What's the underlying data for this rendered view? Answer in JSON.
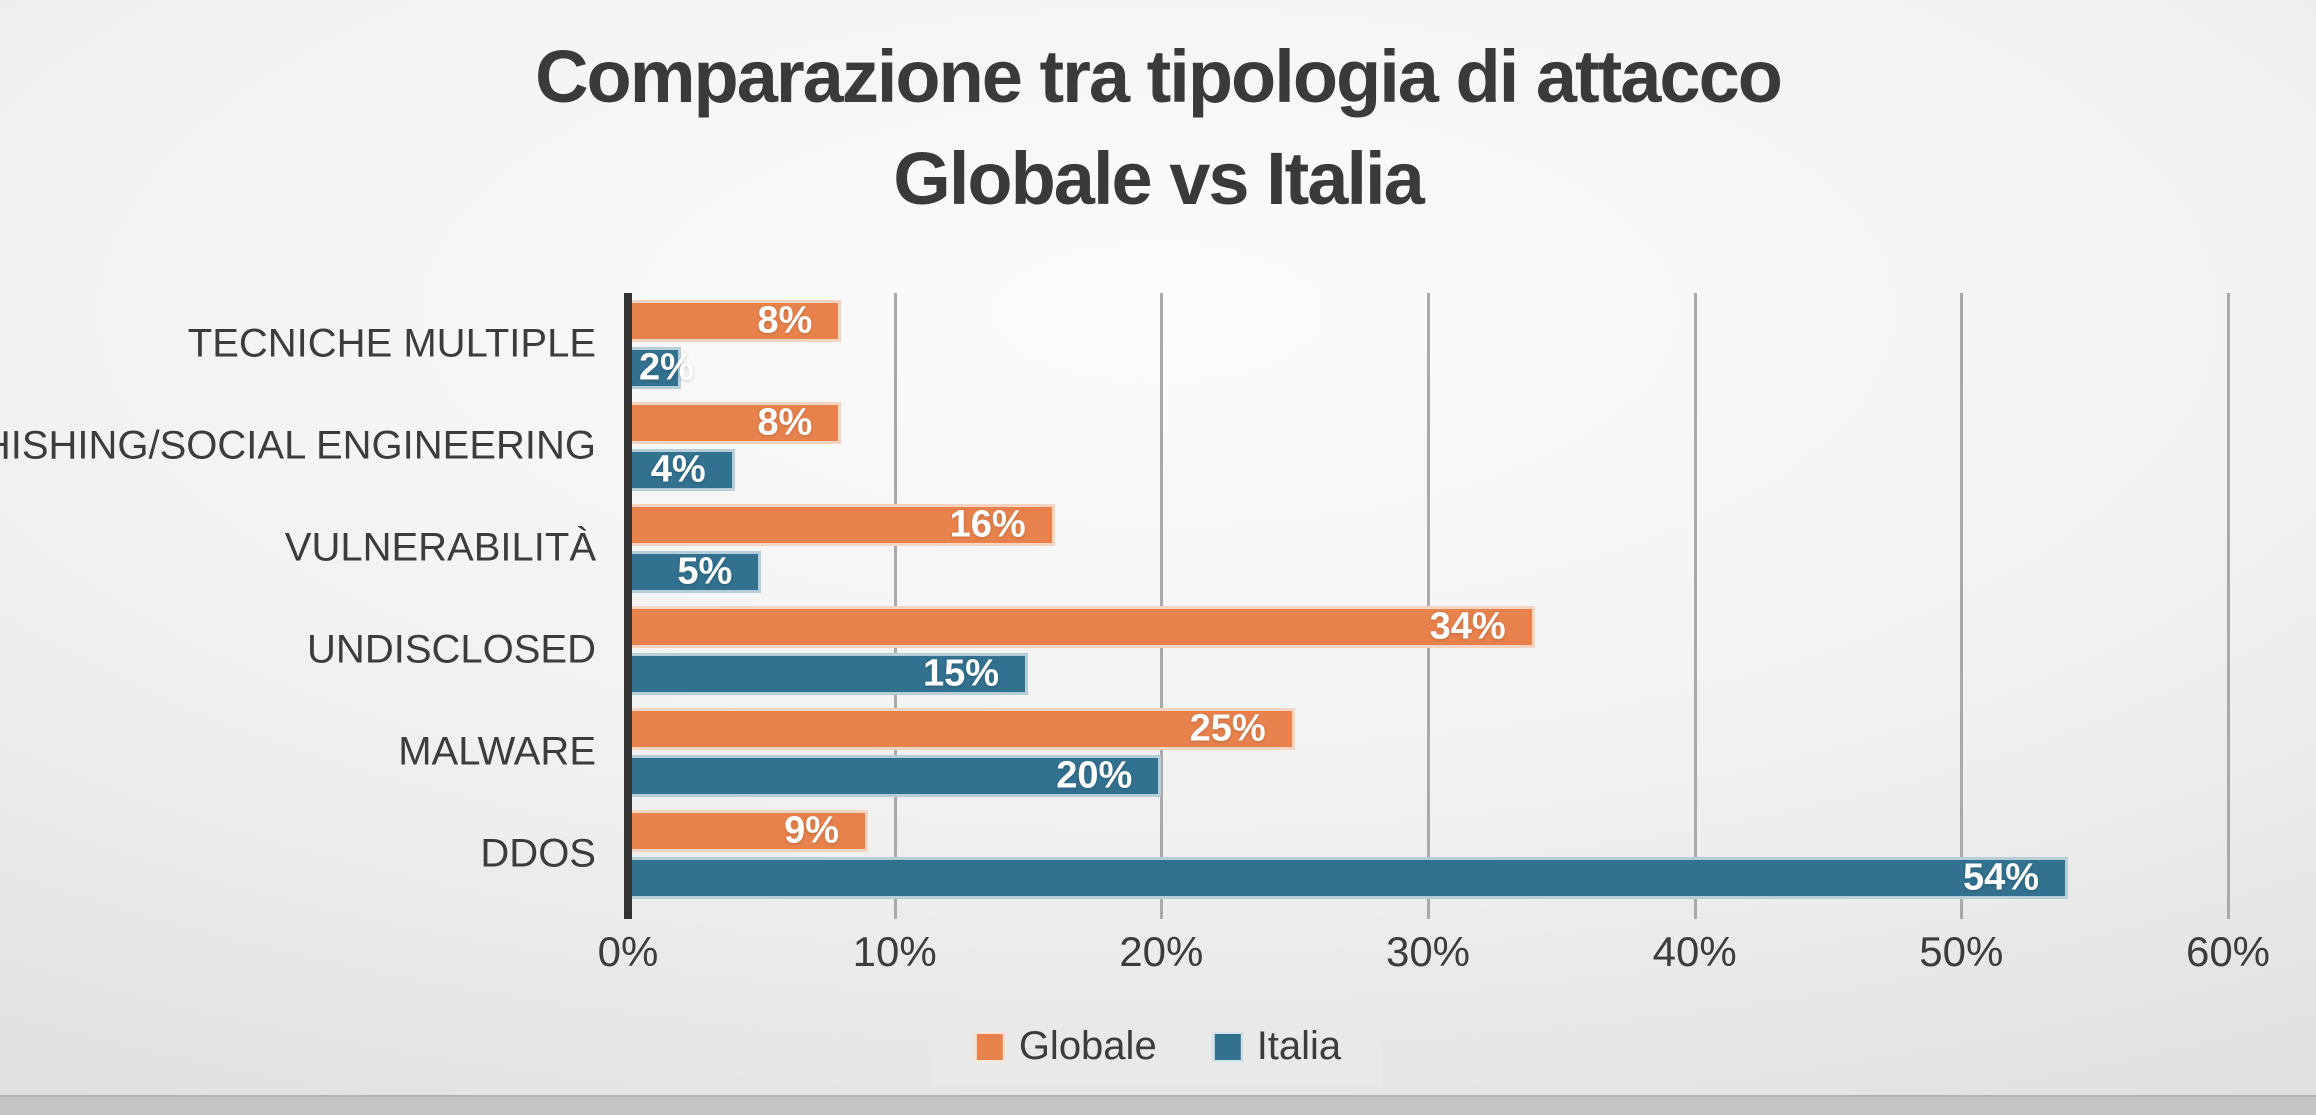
{
  "title": {
    "line1": "Comparazione tra tipologia di attacco",
    "line2": "Globale vs Italia"
  },
  "colors": {
    "globale": "#E8824D",
    "italia": "#32718F",
    "gridline": "#A9A9A9",
    "axis_line": "#333333",
    "text": "#3C3C3C",
    "legend_background": "#E9E9E9",
    "value_label": "#FFFFFF"
  },
  "chart_data": {
    "type": "bar",
    "orientation": "horizontal",
    "title": "Comparazione tra tipologia di attacco Globale vs Italia",
    "categories": [
      "TECNICHE MULTIPLE",
      "PHISHING/SOCIAL ENGINEERING",
      "VULNERABILITÀ",
      "UNDISCLOSED",
      "MALWARE",
      "DDOS"
    ],
    "series": [
      {
        "name": "Globale",
        "color": "#E8824D",
        "values": [
          8,
          8,
          16,
          34,
          25,
          9
        ],
        "labels": [
          "8%",
          "8%",
          "16%",
          "34%",
          "25%",
          "9%"
        ]
      },
      {
        "name": "Italia",
        "color": "#32718F",
        "values": [
          2,
          4,
          5,
          15,
          20,
          54
        ],
        "labels": [
          "2%",
          "4%",
          "5%",
          "15%",
          "20%",
          "54%"
        ]
      }
    ],
    "xlim": [
      0,
      60
    ],
    "x_ticks": [
      {
        "value": 0,
        "label": "0%"
      },
      {
        "value": 10,
        "label": "10%"
      },
      {
        "value": 20,
        "label": "20%"
      },
      {
        "value": 30,
        "label": "30%"
      },
      {
        "value": 40,
        "label": "40%"
      },
      {
        "value": 50,
        "label": "50%"
      },
      {
        "value": 60,
        "label": "60%"
      }
    ],
    "grid": true,
    "legend_position": "bottom",
    "data_label_position": "inside-end"
  },
  "legend": {
    "items": [
      {
        "label": "Globale",
        "color": "#E8824D"
      },
      {
        "label": "Italia",
        "color": "#32718F"
      }
    ]
  }
}
